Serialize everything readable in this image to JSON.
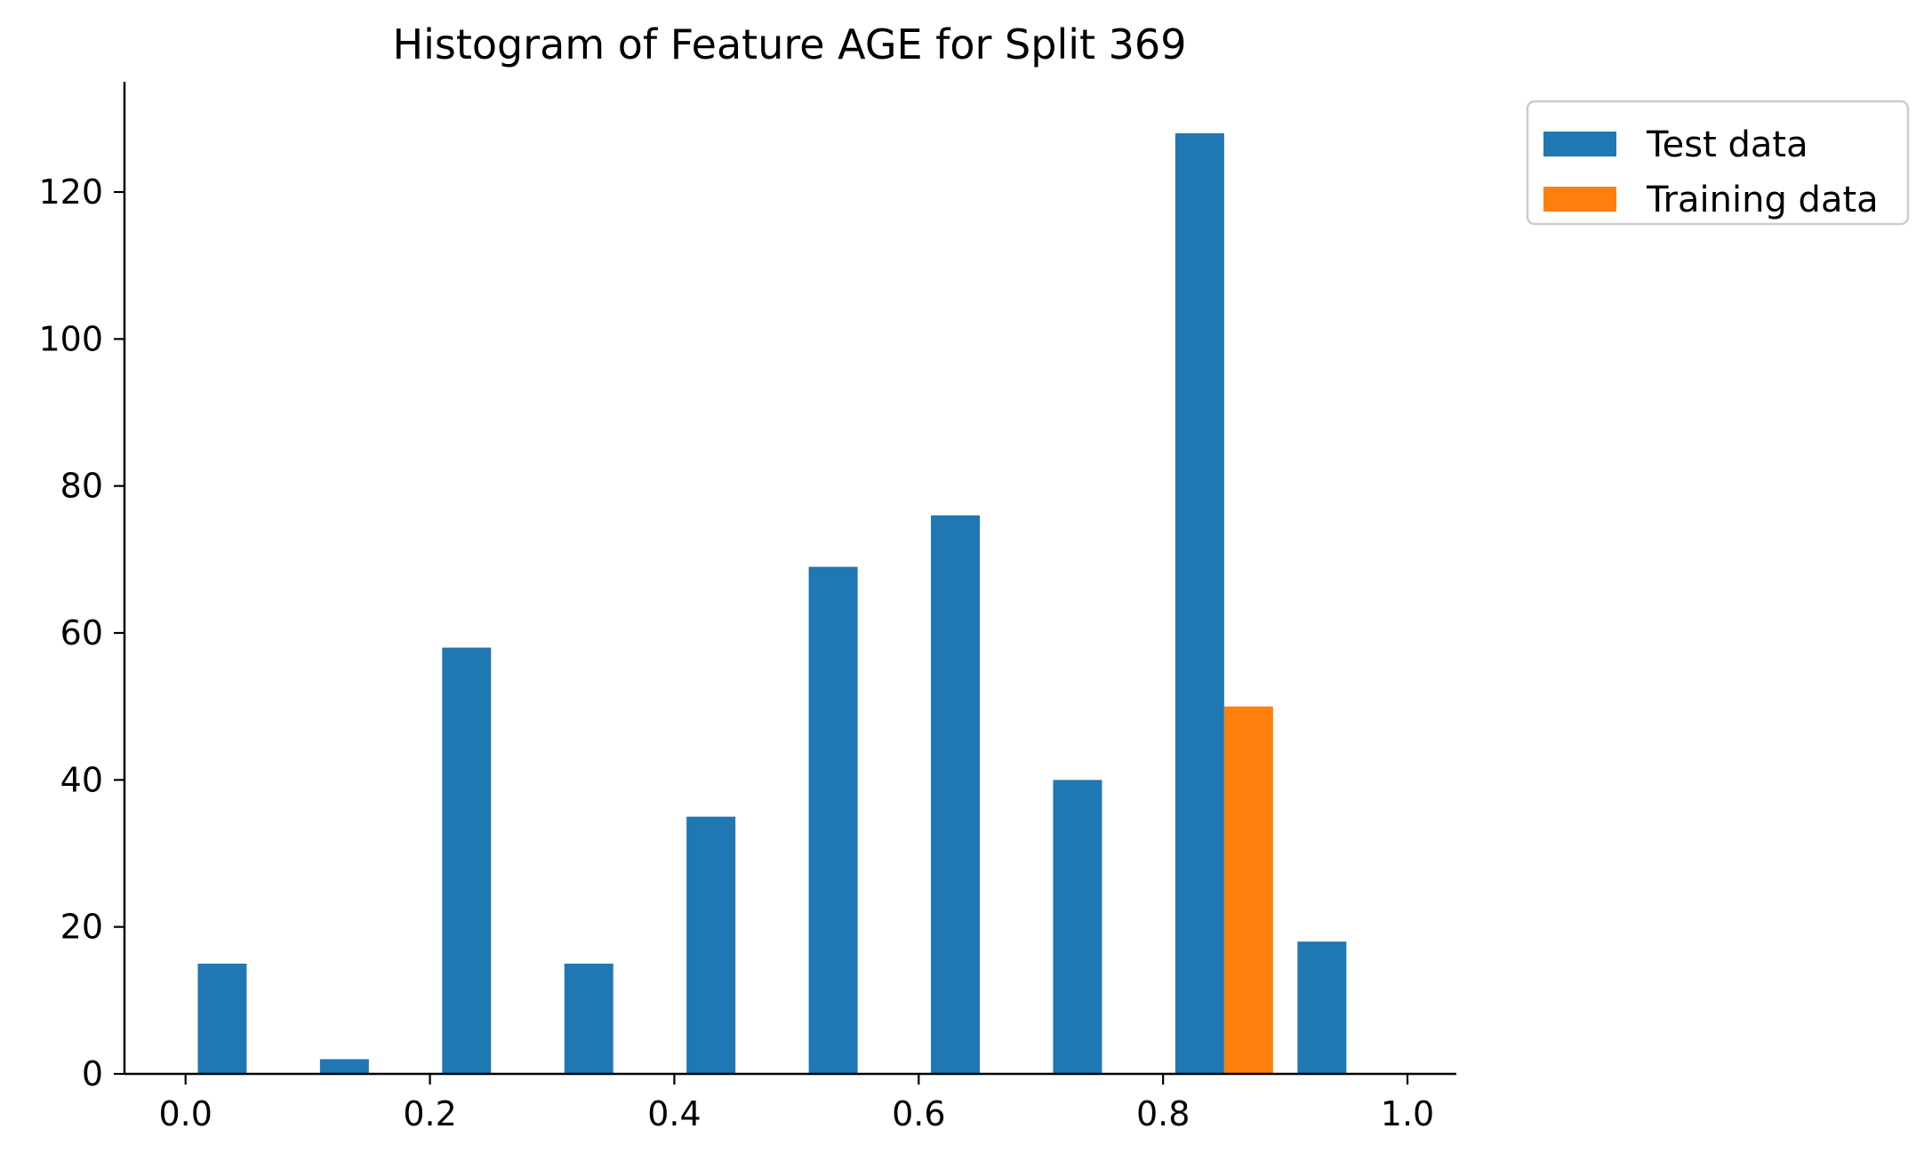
{
  "chart_data": {
    "type": "bar",
    "title": "Histogram of Feature AGE for Split 369",
    "xlabel": "",
    "ylabel": "",
    "xlim": [
      -0.05,
      1.04
    ],
    "ylim": [
      0,
      135
    ],
    "xticks": [
      0.0,
      0.2,
      0.4,
      0.6,
      0.8,
      1.0
    ],
    "xtick_labels": [
      "0.0",
      "0.2",
      "0.4",
      "0.6",
      "0.8",
      "1.0"
    ],
    "yticks": [
      0,
      20,
      40,
      60,
      80,
      100,
      120
    ],
    "ytick_labels": [
      "0",
      "20",
      "40",
      "60",
      "80",
      "100",
      "120"
    ],
    "grid": false,
    "legend_position": "outside-top-right",
    "bin_edges": [
      0.0,
      0.1,
      0.2,
      0.3,
      0.4,
      0.5,
      0.6,
      0.7,
      0.8,
      0.9,
      1.0
    ],
    "series": [
      {
        "name": "Test data",
        "color": "#1f77b4",
        "values": [
          15,
          2,
          58,
          15,
          35,
          69,
          76,
          40,
          128,
          18
        ]
      },
      {
        "name": "Training data",
        "color": "#ff7f0e",
        "values": [
          0,
          0,
          0,
          0,
          0,
          0,
          0,
          0,
          50,
          0
        ]
      }
    ]
  }
}
